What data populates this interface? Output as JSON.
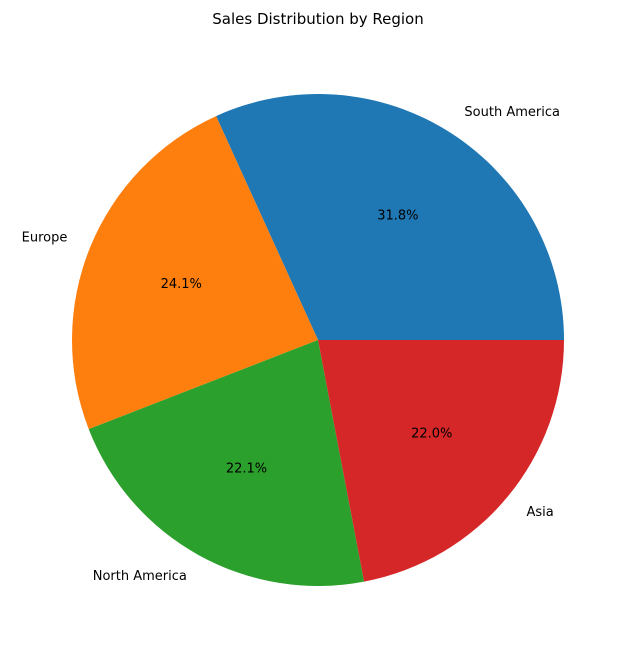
{
  "chart_data": {
    "type": "pie",
    "title": "Sales Distribution by Region",
    "categories": [
      "South America",
      "Europe",
      "North America",
      "Asia"
    ],
    "values": [
      31.8,
      24.1,
      22.1,
      22.0
    ],
    "value_labels": [
      "31.8%",
      "24.1%",
      "22.1%",
      "22.0%"
    ],
    "colors": [
      "#1f77b4",
      "#ff7f0e",
      "#2ca02c",
      "#d62728"
    ],
    "start_angle_deg": 0,
    "direction": "counterclockwise",
    "legend": "none"
  }
}
